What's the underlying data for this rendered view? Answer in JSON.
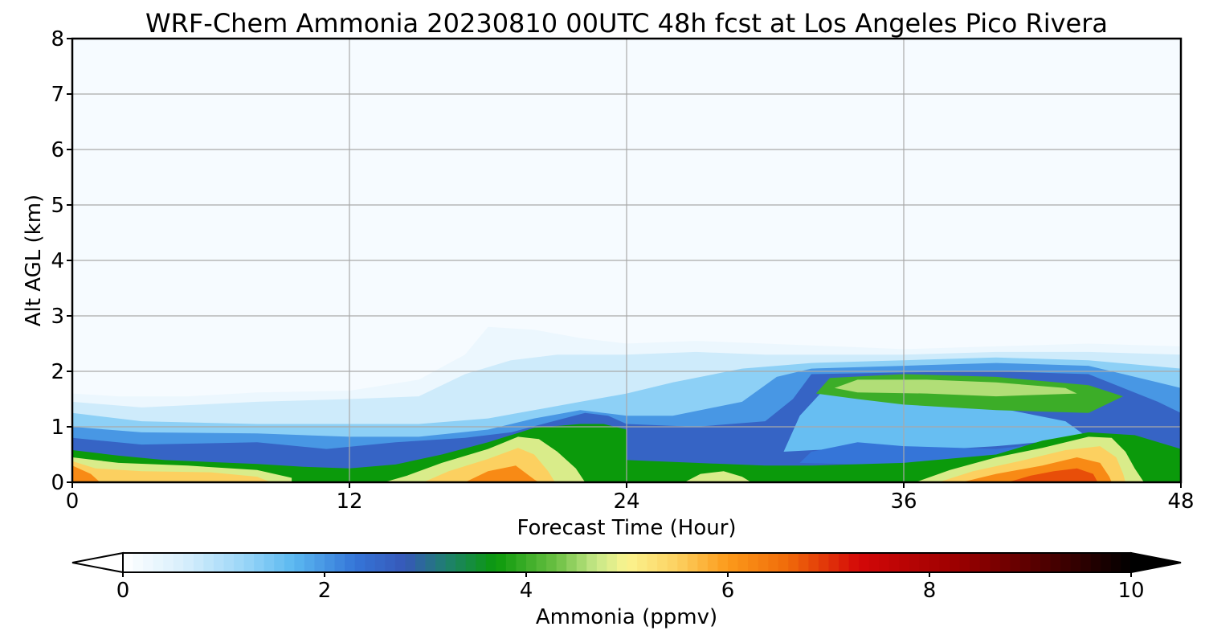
{
  "chart_data": {
    "type": "heatmap",
    "title": "WRF-Chem Ammonia  20230810 00UTC 48h fcst at Los Angeles Pico Rivera",
    "xlabel": "Forecast Time (Hour)",
    "ylabel": "Alt AGL (km)",
    "xlim": [
      0,
      48
    ],
    "ylim": [
      0,
      8
    ],
    "x_ticks": [
      "0",
      "12",
      "24",
      "36",
      "48"
    ],
    "y_ticks": [
      "0",
      "1",
      "2",
      "3",
      "4",
      "5",
      "6",
      "7",
      "8"
    ],
    "grid": true,
    "colorbar": {
      "label": "Ammonia  (ppmv)",
      "range": [
        0,
        10
      ],
      "ticks": [
        "0",
        "2",
        "4",
        "6",
        "8",
        "10"
      ],
      "extend": "both",
      "stops": [
        {
          "value": 0.0,
          "color": "#ffffff"
        },
        {
          "value": 0.6,
          "color": "#d8effc"
        },
        {
          "value": 1.2,
          "color": "#9ad6f8"
        },
        {
          "value": 1.7,
          "color": "#5ab8f0"
        },
        {
          "value": 2.3,
          "color": "#3575d8"
        },
        {
          "value": 2.8,
          "color": "#3658b8"
        },
        {
          "value": 3.2,
          "color": "#1f7f70"
        },
        {
          "value": 3.7,
          "color": "#0b9a0b"
        },
        {
          "value": 4.3,
          "color": "#6cc044"
        },
        {
          "value": 4.7,
          "color": "#c8e888"
        },
        {
          "value": 5.0,
          "color": "#fbf48f"
        },
        {
          "value": 5.5,
          "color": "#fcd060"
        },
        {
          "value": 6.0,
          "color": "#fc9a1a"
        },
        {
          "value": 6.6,
          "color": "#f06a0a"
        },
        {
          "value": 7.3,
          "color": "#d40808"
        },
        {
          "value": 8.3,
          "color": "#9a0000"
        },
        {
          "value": 9.2,
          "color": "#4a0000"
        },
        {
          "value": 10.0,
          "color": "#000000"
        }
      ]
    },
    "layers": [
      {
        "level": 0.3,
        "points": [
          [
            0,
            0
          ],
          [
            0,
            1.6
          ],
          [
            2,
            1.55
          ],
          [
            5,
            1.55
          ],
          [
            8,
            1.62
          ],
          [
            12,
            1.65
          ],
          [
            15,
            1.85
          ],
          [
            17,
            2.3
          ],
          [
            18,
            2.8
          ],
          [
            20,
            2.75
          ],
          [
            22,
            2.6
          ],
          [
            24,
            2.5
          ],
          [
            27,
            2.55
          ],
          [
            30,
            2.5
          ],
          [
            33,
            2.45
          ],
          [
            36,
            2.4
          ],
          [
            40,
            2.45
          ],
          [
            44,
            2.5
          ],
          [
            48,
            2.45
          ],
          [
            48,
            0
          ]
        ]
      },
      {
        "level": 0.7,
        "points": [
          [
            0,
            0
          ],
          [
            0,
            1.45
          ],
          [
            3,
            1.35
          ],
          [
            8,
            1.45
          ],
          [
            12,
            1.5
          ],
          [
            15,
            1.55
          ],
          [
            17,
            1.95
          ],
          [
            19,
            2.2
          ],
          [
            21,
            2.3
          ],
          [
            24,
            2.3
          ],
          [
            27,
            2.35
          ],
          [
            30,
            2.3
          ],
          [
            33,
            2.3
          ],
          [
            36,
            2.3
          ],
          [
            40,
            2.35
          ],
          [
            44,
            2.35
          ],
          [
            48,
            2.3
          ],
          [
            48,
            0
          ]
        ]
      },
      {
        "level": 1.3,
        "points": [
          [
            0,
            0
          ],
          [
            0,
            1.25
          ],
          [
            3,
            1.1
          ],
          [
            8,
            1.05
          ],
          [
            12,
            1.05
          ],
          [
            15,
            1.05
          ],
          [
            18,
            1.15
          ],
          [
            20,
            1.3
          ],
          [
            22,
            1.45
          ],
          [
            24,
            1.6
          ],
          [
            26,
            1.8
          ],
          [
            29,
            2.05
          ],
          [
            32,
            2.15
          ],
          [
            36,
            2.2
          ],
          [
            40,
            2.25
          ],
          [
            44,
            2.2
          ],
          [
            48,
            2.05
          ],
          [
            48,
            0
          ]
        ]
      },
      {
        "level": 2.0,
        "points": [
          [
            0,
            0
          ],
          [
            0,
            1.0
          ],
          [
            3,
            0.9
          ],
          [
            8,
            0.88
          ],
          [
            12,
            0.82
          ],
          [
            15,
            0.82
          ],
          [
            18,
            0.95
          ],
          [
            20,
            1.15
          ],
          [
            22,
            1.3
          ],
          [
            24,
            1.2
          ],
          [
            26,
            1.2
          ],
          [
            29,
            1.45
          ],
          [
            30.5,
            1.9
          ],
          [
            32,
            2.05
          ],
          [
            36,
            2.1
          ],
          [
            40,
            2.15
          ],
          [
            44,
            2.1
          ],
          [
            47,
            1.8
          ],
          [
            48,
            1.7
          ],
          [
            48,
            0
          ]
        ]
      },
      {
        "level": 2.6,
        "points": [
          [
            0,
            0
          ],
          [
            0,
            0.8
          ],
          [
            3,
            0.68
          ],
          [
            8,
            0.72
          ],
          [
            11,
            0.6
          ],
          [
            14,
            0.72
          ],
          [
            17,
            0.8
          ],
          [
            19,
            0.9
          ],
          [
            21,
            1.12
          ],
          [
            22.2,
            1.25
          ],
          [
            23.2,
            1.2
          ],
          [
            24,
            1.05
          ],
          [
            27,
            1.0
          ],
          [
            30,
            1.1
          ],
          [
            31.2,
            1.5
          ],
          [
            32,
            1.95
          ],
          [
            36,
            1.98
          ],
          [
            40,
            2.0
          ],
          [
            44,
            1.95
          ],
          [
            47,
            1.45
          ],
          [
            48,
            1.25
          ],
          [
            48,
            0
          ]
        ]
      },
      {
        "level": 1.6,
        "points": [
          [
            30.8,
            0.55
          ],
          [
            31.5,
            1.2
          ],
          [
            32.5,
            1.65
          ],
          [
            36,
            1.45
          ],
          [
            40,
            1.35
          ],
          [
            43,
            1.1
          ],
          [
            44,
            0.8
          ],
          [
            40,
            0.65
          ],
          [
            36,
            0.55
          ],
          [
            33,
            0.6
          ]
        ]
      },
      {
        "level": 2.3,
        "points": [
          [
            31.5,
            0.35
          ],
          [
            32,
            0.55
          ],
          [
            34,
            0.72
          ],
          [
            36,
            0.65
          ],
          [
            40,
            0.6
          ],
          [
            44,
            0.78
          ],
          [
            45,
            0.7
          ],
          [
            40,
            0.4
          ],
          [
            36,
            0.3
          ]
        ]
      },
      {
        "level": 3.7,
        "points": [
          [
            0,
            0
          ],
          [
            0,
            0.58
          ],
          [
            2,
            0.48
          ],
          [
            4,
            0.4
          ],
          [
            8,
            0.33
          ],
          [
            10,
            0.28
          ],
          [
            12,
            0.25
          ],
          [
            14,
            0.32
          ],
          [
            16,
            0.5
          ],
          [
            18,
            0.72
          ],
          [
            20,
            0.98
          ],
          [
            22,
            1.05
          ],
          [
            23,
            1.05
          ],
          [
            24,
            0.95
          ],
          [
            24,
            0
          ],
          [
            48,
            0
          ],
          [
            48,
            0.6
          ],
          [
            46,
            0.85
          ],
          [
            44,
            0.9
          ],
          [
            42,
            0.75
          ],
          [
            40,
            0.5
          ],
          [
            36,
            0.35
          ],
          [
            32,
            0.3
          ],
          [
            30,
            0.3
          ],
          [
            27,
            0.35
          ],
          [
            24,
            0.4
          ],
          [
            24,
            0
          ]
        ]
      },
      {
        "level": 4.0,
        "points": [
          [
            32.2,
            1.6
          ],
          [
            32.8,
            1.88
          ],
          [
            36,
            1.95
          ],
          [
            40,
            1.9
          ],
          [
            44,
            1.75
          ],
          [
            45.5,
            1.55
          ],
          [
            44,
            1.25
          ],
          [
            40,
            1.3
          ],
          [
            36,
            1.4
          ],
          [
            34,
            1.5
          ]
        ]
      },
      {
        "level": 4.6,
        "points": [
          [
            33,
            1.7
          ],
          [
            34,
            1.85
          ],
          [
            37,
            1.85
          ],
          [
            40,
            1.8
          ],
          [
            43,
            1.7
          ],
          [
            43.5,
            1.6
          ],
          [
            40,
            1.55
          ],
          [
            37,
            1.6
          ],
          [
            34,
            1.62
          ]
        ]
      },
      {
        "level": 4.8,
        "points": [
          [
            0,
            0
          ],
          [
            0,
            0.45
          ],
          [
            2,
            0.35
          ],
          [
            5,
            0.3
          ],
          [
            8,
            0.22
          ],
          [
            9.5,
            0.08
          ],
          [
            9.5,
            0
          ],
          [
            0,
            0
          ]
        ]
      },
      {
        "level": 4.8,
        "points": [
          [
            13.5,
            0
          ],
          [
            14.5,
            0.12
          ],
          [
            16,
            0.35
          ],
          [
            18,
            0.6
          ],
          [
            19.3,
            0.82
          ],
          [
            20.2,
            0.78
          ],
          [
            21,
            0.55
          ],
          [
            21.8,
            0.25
          ],
          [
            22.2,
            0
          ],
          [
            13.5,
            0
          ]
        ]
      },
      {
        "level": 4.8,
        "points": [
          [
            36.5,
            0
          ],
          [
            38,
            0.22
          ],
          [
            40,
            0.45
          ],
          [
            42,
            0.62
          ],
          [
            44,
            0.82
          ],
          [
            45,
            0.8
          ],
          [
            45.6,
            0.55
          ],
          [
            46,
            0.25
          ],
          [
            46.4,
            0
          ],
          [
            36.5,
            0
          ]
        ]
      },
      {
        "level": 4.8,
        "points": [
          [
            26.5,
            0
          ],
          [
            27.2,
            0.15
          ],
          [
            28.2,
            0.2
          ],
          [
            29,
            0.1
          ],
          [
            29.4,
            0
          ]
        ]
      },
      {
        "level": 5.5,
        "points": [
          [
            0,
            0
          ],
          [
            0,
            0.38
          ],
          [
            1,
            0.25
          ],
          [
            3,
            0.2
          ],
          [
            6,
            0.18
          ],
          [
            8,
            0.1
          ],
          [
            8.6,
            0
          ],
          [
            0,
            0
          ]
        ]
      },
      {
        "level": 5.5,
        "points": [
          [
            15.2,
            0
          ],
          [
            16.3,
            0.2
          ],
          [
            18,
            0.42
          ],
          [
            19.3,
            0.62
          ],
          [
            20,
            0.5
          ],
          [
            20.6,
            0.2
          ],
          [
            20.9,
            0
          ],
          [
            15.2,
            0
          ]
        ]
      },
      {
        "level": 5.5,
        "points": [
          [
            37.5,
            0
          ],
          [
            39,
            0.2
          ],
          [
            41,
            0.38
          ],
          [
            43,
            0.58
          ],
          [
            44.5,
            0.65
          ],
          [
            45.2,
            0.45
          ],
          [
            45.5,
            0.15
          ],
          [
            45.6,
            0
          ],
          [
            37.5,
            0
          ]
        ]
      },
      {
        "level": 6.2,
        "points": [
          [
            0,
            0
          ],
          [
            0,
            0.3
          ],
          [
            0.8,
            0.15
          ],
          [
            1.2,
            0
          ],
          [
            0,
            0
          ]
        ]
      },
      {
        "level": 6.2,
        "points": [
          [
            17,
            0
          ],
          [
            18,
            0.2
          ],
          [
            19.2,
            0.3
          ],
          [
            20,
            0.05
          ],
          [
            20.2,
            0
          ],
          [
            17,
            0
          ]
        ]
      },
      {
        "level": 6.2,
        "points": [
          [
            38.5,
            0
          ],
          [
            40,
            0.15
          ],
          [
            42,
            0.3
          ],
          [
            43.5,
            0.45
          ],
          [
            44.5,
            0.35
          ],
          [
            44.9,
            0.1
          ],
          [
            45,
            0
          ],
          [
            38.5,
            0
          ]
        ]
      },
      {
        "level": 6.8,
        "points": [
          [
            40.5,
            0
          ],
          [
            41.5,
            0.12
          ],
          [
            42.5,
            0.2
          ],
          [
            43.5,
            0.25
          ],
          [
            44.2,
            0.15
          ],
          [
            44.4,
            0
          ],
          [
            40.5,
            0
          ]
        ]
      }
    ]
  }
}
